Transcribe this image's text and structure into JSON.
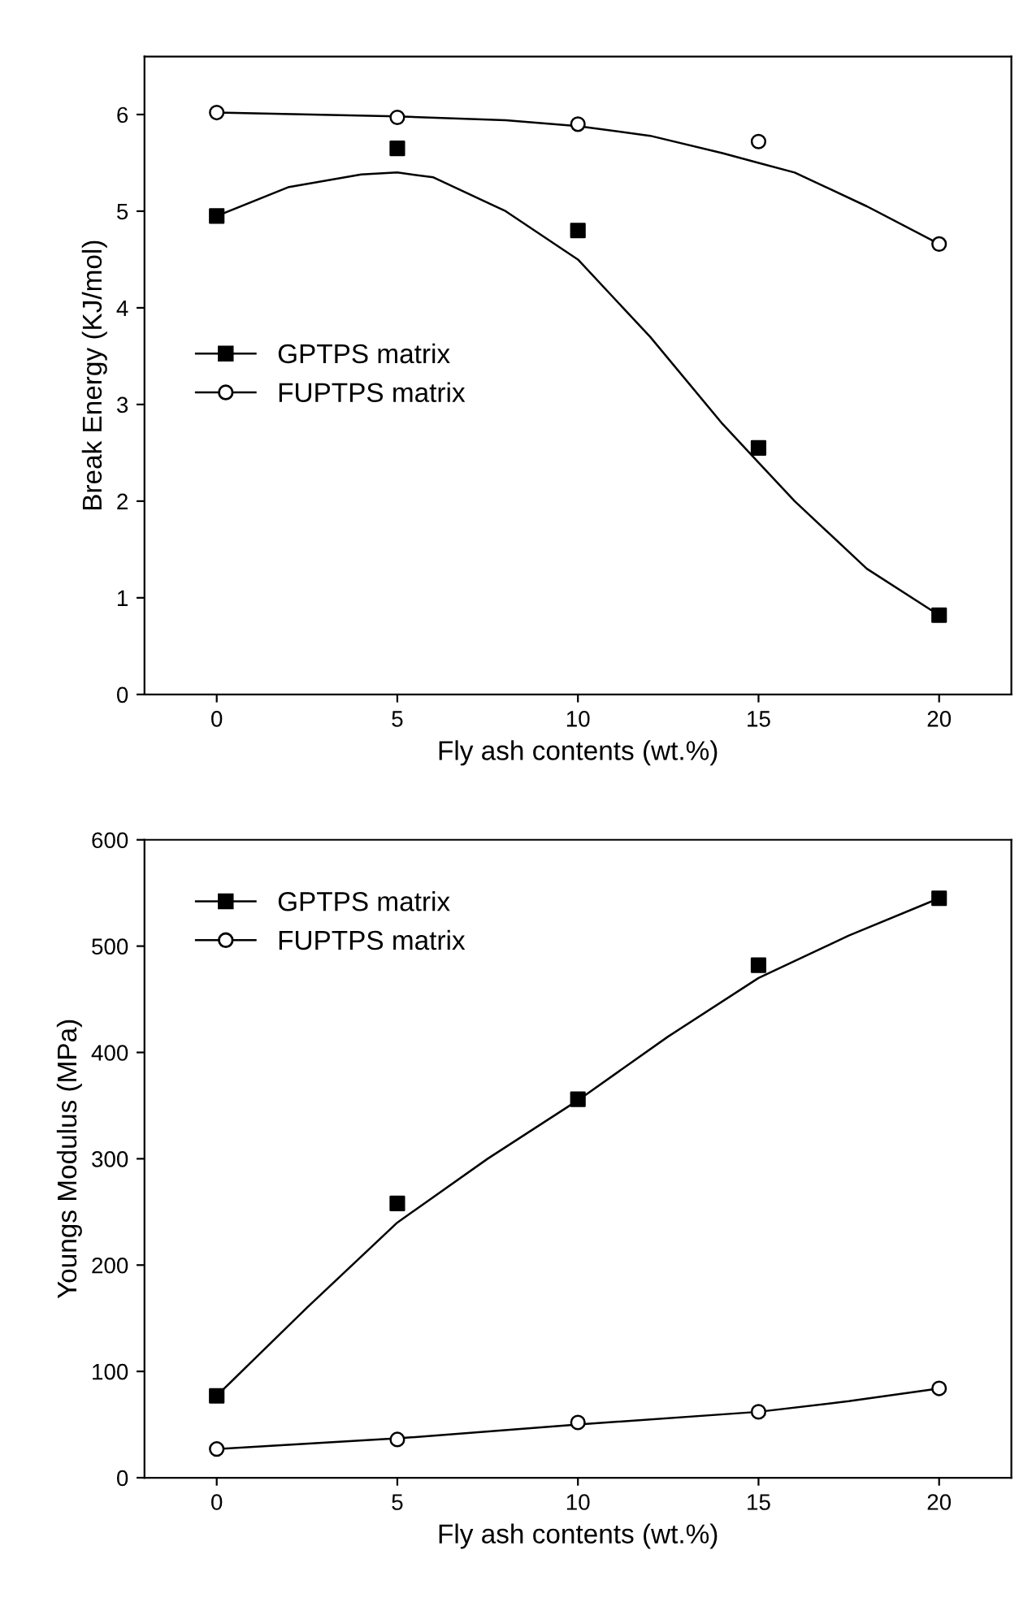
{
  "chart_data": [
    {
      "type": "scatter",
      "ylabel": "Break Energy (KJ/mol)",
      "xlabel": "Fly ash contents (wt.%)",
      "xlim": [
        -2,
        22
      ],
      "xticks": [
        0,
        5,
        10,
        15,
        20
      ],
      "ylim": [
        0,
        6.6
      ],
      "yticks": [
        0,
        1,
        2,
        3,
        4,
        5,
        6
      ],
      "grid": false,
      "legend": "center left",
      "series": [
        {
          "name": "GPTPS matrix",
          "color": "#000000",
          "marker": "square",
          "x": [
            0,
            5,
            10,
            15,
            20
          ],
          "values": [
            4.95,
            5.65,
            4.8,
            2.55,
            0.82
          ]
        },
        {
          "name": "FUPTPS matrix",
          "color": "#ffffff",
          "marker": "circle",
          "x": [
            0,
            5,
            10,
            15,
            20
          ],
          "values": [
            6.02,
            5.97,
            5.9,
            5.72,
            4.66
          ]
        },
        {
          "type": "line",
          "color": "#000000",
          "x": [
            0,
            2,
            4,
            5,
            6,
            8,
            10,
            12,
            14,
            15,
            16,
            18,
            20
          ],
          "values": [
            4.95,
            5.25,
            5.38,
            5.4,
            5.35,
            5.0,
            4.5,
            3.7,
            2.8,
            2.4,
            2.0,
            1.3,
            0.82
          ]
        },
        {
          "type": "line",
          "color": "#000000",
          "x": [
            0,
            5,
            8,
            10,
            12,
            14,
            15,
            16,
            18,
            20
          ],
          "values": [
            6.02,
            5.98,
            5.94,
            5.88,
            5.78,
            5.6,
            5.5,
            5.4,
            5.05,
            4.66
          ]
        }
      ]
    },
    {
      "type": "scatter",
      "ylabel": "Youngs Modulus (MPa)",
      "xlabel": "Fly ash contents (wt.%)",
      "xlim": [
        -2,
        22
      ],
      "xticks": [
        0,
        5,
        10,
        15,
        20
      ],
      "ylim": [
        0,
        600
      ],
      "yticks": [
        0,
        100,
        200,
        300,
        400,
        500,
        600
      ],
      "grid": false,
      "legend": "upper left",
      "series": [
        {
          "name": "GPTPS matrix",
          "color": "#000000",
          "marker": "square",
          "x": [
            0,
            5,
            10,
            15,
            20
          ],
          "values": [
            77,
            258,
            356,
            482,
            545
          ]
        },
        {
          "name": "FUPTPS matrix",
          "color": "#ffffff",
          "marker": "circle",
          "x": [
            0,
            5,
            10,
            15,
            20
          ],
          "values": [
            27,
            36,
            52,
            62,
            84
          ]
        },
        {
          "type": "line",
          "color": "#000000",
          "x": [
            0,
            2.5,
            5,
            7.5,
            10,
            12.5,
            15,
            17.5,
            20
          ],
          "values": [
            77,
            160,
            240,
            300,
            355,
            415,
            470,
            510,
            545
          ]
        },
        {
          "type": "line",
          "color": "#000000",
          "x": [
            0,
            5,
            10,
            15,
            17.5,
            20
          ],
          "values": [
            27,
            37,
            50,
            62,
            72,
            84
          ]
        }
      ]
    }
  ]
}
